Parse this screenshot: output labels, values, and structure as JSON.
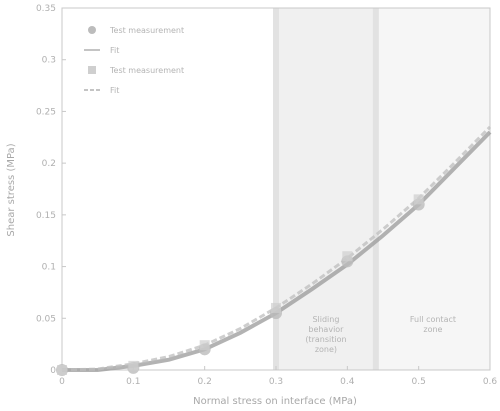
{
  "chart_data": {
    "type": "line",
    "title": "",
    "xlabel": "Normal stress on interface (MPa)",
    "ylabel": "Shear stress (MPa)",
    "xlim": [
      0,
      0.6
    ],
    "ylim": [
      0,
      0.35
    ],
    "xticks": [
      "0",
      "0.1",
      "0.2",
      "0.3",
      "0.4",
      "0.5",
      "0.6"
    ],
    "yticks": [
      "0",
      "0.05",
      "0.1",
      "0.15",
      "0.2",
      "0.25",
      "0.3",
      "0.35"
    ],
    "legend": {
      "placement": "top-left",
      "entries": [
        {
          "marker": "circle",
          "text": "Test measurement"
        },
        {
          "marker": "line",
          "text": "Fit"
        },
        {
          "marker": "square",
          "text": "Test measurement"
        },
        {
          "marker": "dash",
          "text": "Fit"
        }
      ]
    },
    "regions": [
      {
        "x_from": 0.3,
        "x_to": 0.44,
        "shade": "#f0f0f0",
        "label_lines": [
          "Sliding",
          "behavior",
          "(transition",
          "zone)"
        ]
      },
      {
        "x_from": 0.44,
        "x_to": 0.6,
        "shade": "#f6f6f6",
        "label_lines": [
          "Full contact",
          "zone"
        ]
      }
    ],
    "series": [
      {
        "name": "Test measurement",
        "x": [
          0.0,
          0.1,
          0.2,
          0.3,
          0.4,
          0.5
        ],
        "y": [
          0.0,
          0.002,
          0.02,
          0.055,
          0.105,
          0.16
        ],
        "fit_x": [
          0.0,
          0.05,
          0.1,
          0.15,
          0.2,
          0.25,
          0.3,
          0.35,
          0.4,
          0.45,
          0.5,
          0.55,
          0.6
        ],
        "fit_y": [
          0.0,
          0.0,
          0.004,
          0.01,
          0.02,
          0.036,
          0.055,
          0.078,
          0.102,
          0.13,
          0.16,
          0.195,
          0.23
        ]
      },
      {
        "name": "Test measurement",
        "x": [
          0.0,
          0.1,
          0.2,
          0.3,
          0.4,
          0.5
        ],
        "y": [
          0.0,
          0.004,
          0.024,
          0.06,
          0.11,
          0.165
        ],
        "fit_x": [
          0.0,
          0.05,
          0.1,
          0.15,
          0.2,
          0.25,
          0.3,
          0.35,
          0.4,
          0.45,
          0.5,
          0.55,
          0.6
        ],
        "fit_y": [
          0.0,
          0.001,
          0.006,
          0.013,
          0.024,
          0.04,
          0.06,
          0.083,
          0.108,
          0.136,
          0.166,
          0.2,
          0.235
        ]
      }
    ],
    "grid": false,
    "colors": {
      "series": "#9a9a9a",
      "axis": "#c8c8c8",
      "fit": "#bdbdbd"
    }
  }
}
